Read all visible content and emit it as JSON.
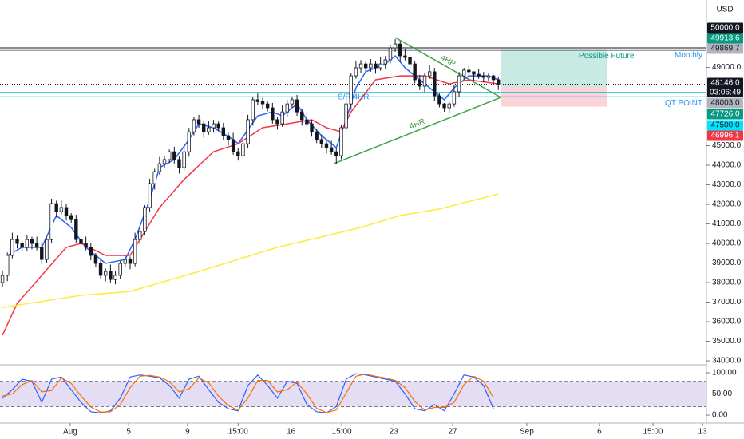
{
  "chart_data": {
    "type": "candlestick",
    "currency": "USD",
    "xlim": [
      -0.5,
      143.4
    ],
    "xticks": [
      {
        "value": 13.8,
        "label": "Aug"
      },
      {
        "value": 25.7,
        "label": "5"
      },
      {
        "value": 37.7,
        "label": "9"
      },
      {
        "value": 48.0,
        "label": "15:00"
      },
      {
        "value": 58.8,
        "label": "16"
      },
      {
        "value": 69.1,
        "label": "15:00"
      },
      {
        "value": 79.7,
        "label": "23"
      },
      {
        "value": 91.7,
        "label": "27"
      },
      {
        "value": 106.8,
        "label": "Sep"
      },
      {
        "value": 121.6,
        "label": "6"
      },
      {
        "value": 132.5,
        "label": "15:00"
      },
      {
        "value": 142.6,
        "label": "13"
      }
    ],
    "ylim": [
      33880,
      52450
    ],
    "yticks": [
      {
        "value": 49000,
        "label": "49000.0"
      },
      {
        "value": 45000,
        "label": "45000.0"
      },
      {
        "value": 44000,
        "label": "44000.0"
      },
      {
        "value": 43000,
        "label": "43000.0"
      },
      {
        "value": 42000,
        "label": "42000.0"
      },
      {
        "value": 41000,
        "label": "41000.0"
      },
      {
        "value": 40000,
        "label": "40000.0"
      },
      {
        "value": 39000,
        "label": "39000.0"
      },
      {
        "value": 38000,
        "label": "38000.0"
      },
      {
        "value": 37000,
        "label": "37000.0"
      },
      {
        "value": 36000,
        "label": "36000.0"
      },
      {
        "value": 35000,
        "label": "35000.0"
      },
      {
        "value": 34000,
        "label": "34000.0"
      }
    ],
    "up_color": "#ffffff",
    "down_color": "#131722",
    "ohlc": [
      [
        38000,
        38620,
        37800,
        38370
      ],
      [
        38370,
        39540,
        38070,
        39390
      ],
      [
        39390,
        40550,
        39240,
        40200
      ],
      [
        40200,
        40400,
        39750,
        40000
      ],
      [
        40000,
        40120,
        39620,
        39800
      ],
      [
        39800,
        40450,
        39600,
        40200
      ],
      [
        40200,
        40350,
        39700,
        40000
      ],
      [
        40000,
        40350,
        39650,
        39800
      ],
      [
        39800,
        40000,
        38930,
        39180
      ],
      [
        39180,
        40320,
        39000,
        40200
      ],
      [
        40200,
        42290,
        40000,
        42040
      ],
      [
        42040,
        42190,
        41330,
        41630
      ],
      [
        41630,
        42190,
        41480,
        41840
      ],
      [
        41840,
        42040,
        41180,
        41430
      ],
      [
        41430,
        41550,
        41040,
        41220
      ],
      [
        41220,
        41470,
        40000,
        40200
      ],
      [
        40200,
        40350,
        39700,
        40000
      ],
      [
        40000,
        40350,
        39650,
        39800
      ],
      [
        39800,
        40000,
        39140,
        39390
      ],
      [
        39390,
        39510,
        38800,
        38980
      ],
      [
        38980,
        39230,
        38170,
        38370
      ],
      [
        38370,
        38720,
        38070,
        38570
      ],
      [
        38570,
        38920,
        38010,
        38160
      ],
      [
        38160,
        38570,
        37910,
        38370
      ],
      [
        38370,
        39100,
        38190,
        38980
      ],
      [
        38980,
        39430,
        38780,
        39180
      ],
      [
        39180,
        39330,
        38680,
        38980
      ],
      [
        38980,
        40550,
        38830,
        40200
      ],
      [
        40200,
        40810,
        39950,
        40610
      ],
      [
        40610,
        41960,
        40430,
        41840
      ],
      [
        41840,
        43310,
        41640,
        43060
      ],
      [
        43060,
        43820,
        42760,
        43670
      ],
      [
        43670,
        44430,
        43520,
        44080
      ],
      [
        44080,
        44490,
        43830,
        44290
      ],
      [
        44290,
        44810,
        44110,
        44690
      ],
      [
        44690,
        44940,
        44090,
        44290
      ],
      [
        44290,
        44440,
        43580,
        43880
      ],
      [
        43880,
        45040,
        43730,
        44690
      ],
      [
        44690,
        45910,
        44440,
        45710
      ],
      [
        45710,
        46450,
        45530,
        46330
      ],
      [
        46330,
        46580,
        45920,
        46120
      ],
      [
        46120,
        46270,
        45410,
        45710
      ],
      [
        45710,
        46270,
        45560,
        45920
      ],
      [
        45920,
        46320,
        45670,
        46120
      ],
      [
        46120,
        46240,
        45740,
        45920
      ],
      [
        45920,
        46170,
        45310,
        45510
      ],
      [
        45510,
        45660,
        45010,
        45310
      ],
      [
        45310,
        45660,
        44540,
        44690
      ],
      [
        44690,
        44890,
        44240,
        44490
      ],
      [
        44490,
        45220,
        44310,
        45100
      ],
      [
        45100,
        46580,
        44900,
        46330
      ],
      [
        46330,
        47500,
        46030,
        47350
      ],
      [
        47350,
        47700,
        47100,
        47250
      ],
      [
        47250,
        47450,
        46890,
        47140
      ],
      [
        47140,
        47260,
        46760,
        46940
      ],
      [
        46940,
        47190,
        46130,
        46330
      ],
      [
        46330,
        46480,
        45820,
        46120
      ],
      [
        46120,
        47080,
        45970,
        46730
      ],
      [
        46730,
        47340,
        46480,
        47140
      ],
      [
        47140,
        47470,
        46960,
        47350
      ],
      [
        47350,
        47600,
        46530,
        46730
      ],
      [
        46730,
        46880,
        46030,
        46330
      ],
      [
        46330,
        46680,
        45970,
        46120
      ],
      [
        46120,
        46320,
        45460,
        45710
      ],
      [
        45710,
        45830,
        45130,
        45310
      ],
      [
        45310,
        45560,
        44900,
        45100
      ],
      [
        45100,
        45250,
        44600,
        44900
      ],
      [
        44900,
        45250,
        44540,
        44690
      ],
      [
        44690,
        44890,
        44080,
        44490
      ],
      [
        44490,
        46040,
        44310,
        45920
      ],
      [
        45920,
        47390,
        45720,
        47140
      ],
      [
        47140,
        48720,
        46840,
        48570
      ],
      [
        48570,
        49330,
        48420,
        48980
      ],
      [
        48980,
        49380,
        48730,
        49180
      ],
      [
        49180,
        49300,
        48800,
        48980
      ],
      [
        48980,
        49430,
        48780,
        49180
      ],
      [
        49180,
        49330,
        48680,
        48980
      ],
      [
        48980,
        49530,
        48830,
        49180
      ],
      [
        49180,
        49590,
        48930,
        49390
      ],
      [
        49390,
        50120,
        49210,
        50000
      ],
      [
        50000,
        50450,
        49800,
        50200
      ],
      [
        50200,
        50350,
        49290,
        49590
      ],
      [
        49590,
        49940,
        49360,
        49510
      ],
      [
        49510,
        49710,
        48930,
        49180
      ],
      [
        49180,
        49300,
        48190,
        48370
      ],
      [
        48370,
        48620,
        47840,
        48040
      ],
      [
        48040,
        48720,
        47740,
        48570
      ],
      [
        48570,
        49130,
        48420,
        48780
      ],
      [
        48780,
        48980,
        47300,
        47550
      ],
      [
        47550,
        47670,
        46960,
        47140
      ],
      [
        47140,
        47190,
        46740,
        46940
      ],
      [
        46940,
        47290,
        46640,
        47140
      ],
      [
        47140,
        48110,
        46990,
        47760
      ],
      [
        47760,
        48770,
        47510,
        48570
      ],
      [
        48570,
        48980,
        48390,
        48860
      ],
      [
        48860,
        49110,
        48580,
        48780
      ],
      [
        48780,
        48800,
        48350,
        48650
      ],
      [
        48650,
        48920,
        48420,
        48570
      ],
      [
        48570,
        48770,
        48240,
        48490
      ],
      [
        48490,
        48690,
        48310,
        48570
      ],
      [
        48570,
        48620,
        48170,
        48370
      ],
      [
        48370,
        48520,
        47846,
        48146
      ]
    ],
    "lines": [
      {
        "color": "#2962ff",
        "x": [
          1,
          4,
          8,
          11,
          14,
          17,
          21,
          25,
          27,
          30,
          32,
          35,
          38,
          40,
          43,
          47,
          48,
          52,
          55,
          57,
          60,
          62,
          65,
          68,
          70,
          72,
          74,
          78,
          80,
          82,
          85,
          87,
          90,
          92,
          95,
          99,
          101
        ],
        "values": [
          39390,
          39800,
          39800,
          41430,
          40820,
          39800,
          38980,
          39180,
          40200,
          42240,
          43880,
          44290,
          45310,
          46120,
          45920,
          45310,
          45100,
          46530,
          46730,
          46530,
          47140,
          46330,
          45510,
          44900,
          46330,
          47960,
          48780,
          49180,
          49590,
          48980,
          48370,
          47960,
          47350,
          47960,
          48570,
          48570,
          48370
        ]
      },
      {
        "color": "#f23645",
        "x": [
          0,
          3,
          8,
          13,
          16,
          21,
          26,
          28,
          32,
          37,
          43,
          48,
          53,
          58,
          63,
          66,
          69,
          71,
          76,
          81,
          86,
          91,
          95,
          101
        ],
        "values": [
          35310,
          36940,
          38370,
          39800,
          40000,
          39390,
          39390,
          40200,
          41840,
          43270,
          44690,
          45100,
          45920,
          46120,
          46330,
          45920,
          45710,
          46730,
          48370,
          48570,
          48570,
          48160,
          48370,
          48160
        ]
      },
      {
        "color": "#ffeb3b",
        "x": [
          0,
          16,
          26,
          40,
          56,
          73,
          81,
          89,
          101
        ],
        "values": [
          36730,
          37350,
          37550,
          38570,
          39800,
          40820,
          41430,
          41760,
          42530
        ]
      }
    ],
    "trendlines": [
      {
        "color": "#43a047",
        "label": "4HR",
        "x": [
          80,
          101.5
        ],
        "values": [
          50530,
          47470
        ]
      },
      {
        "color": "#43a047",
        "label": "4HR",
        "x": [
          67.5,
          101.5
        ],
        "values": [
          44080,
          47470
        ]
      }
    ],
    "levels": [
      {
        "value": 50000,
        "value_label": "50000.0",
        "color": "#131722",
        "tag": "#131722"
      },
      {
        "value": 49869.7,
        "value_label": "49869.7",
        "color": "#787b86",
        "tag": "#b2b5be",
        "label": "Monthly"
      },
      {
        "value": 47726,
        "value_label": "47726.0",
        "color": "#00bcd4",
        "tag": "#089981"
      },
      {
        "value": 47500,
        "value_label": "47500.0",
        "color": "#00bcd4",
        "tag": "#00e5ff",
        "label": "QT POINT"
      }
    ],
    "notes": [
      "S/R 4HR"
    ],
    "last_price": {
      "value": 48146,
      "label": "48146.0",
      "countdown": "03:06:49",
      "color": "#131722"
    },
    "position": {
      "text": "Possible Future",
      "x": [
        101.6,
        123.1
      ],
      "entry": {
        "value": 48003,
        "label": "48003.0",
        "color": "#b2b5be"
      },
      "target": {
        "value": 49913.6,
        "label": "49913.6",
        "color": "#089981"
      },
      "stop": {
        "value": 46996.1,
        "label": "46996.1",
        "color": "#f23645"
      }
    },
    "stoch": {
      "ylim": [
        -15,
        117
      ],
      "yticks": [
        {
          "value": 100,
          "label": "100.00"
        },
        {
          "value": 50,
          "label": "50.00"
        },
        {
          "value": 0,
          "label": "0.00"
        }
      ],
      "bands": [
        80,
        20
      ],
      "fill": "#7e57c2",
      "x": [
        0,
        2,
        4,
        6,
        8,
        10,
        12,
        14,
        16,
        18,
        20,
        22,
        24,
        26,
        28,
        30,
        32,
        34,
        36,
        38,
        40,
        42,
        44,
        46,
        48,
        50,
        52,
        54,
        56,
        58,
        60,
        62,
        64,
        66,
        68,
        70,
        72,
        74,
        76,
        78,
        80,
        82,
        84,
        86,
        88,
        90,
        92,
        94,
        96,
        98,
        100
      ],
      "series": [
        {
          "color": "#2962ff",
          "values": [
            40,
            60,
            85,
            80,
            30,
            85,
            90,
            60,
            30,
            8,
            5,
            10,
            40,
            90,
            95,
            92,
            88,
            70,
            40,
            85,
            92,
            60,
            30,
            15,
            10,
            70,
            95,
            70,
            40,
            80,
            75,
            25,
            8,
            5,
            20,
            85,
            98,
            95,
            90,
            85,
            80,
            50,
            15,
            10,
            25,
            10,
            50,
            95,
            90,
            70,
            15
          ]
        },
        {
          "color": "#ff6d00",
          "values": [
            45,
            50,
            72,
            82,
            55,
            58,
            88,
            75,
            45,
            19,
            7,
            8,
            25,
            65,
            92,
            94,
            90,
            79,
            55,
            62,
            88,
            76,
            45,
            22,
            12,
            40,
            82,
            82,
            55,
            60,
            78,
            50,
            16,
            6,
            12,
            52,
            92,
            97,
            92,
            88,
            82,
            65,
            32,
            12,
            18,
            18,
            30,
            72,
            92,
            80,
            42
          ]
        }
      ]
    }
  }
}
